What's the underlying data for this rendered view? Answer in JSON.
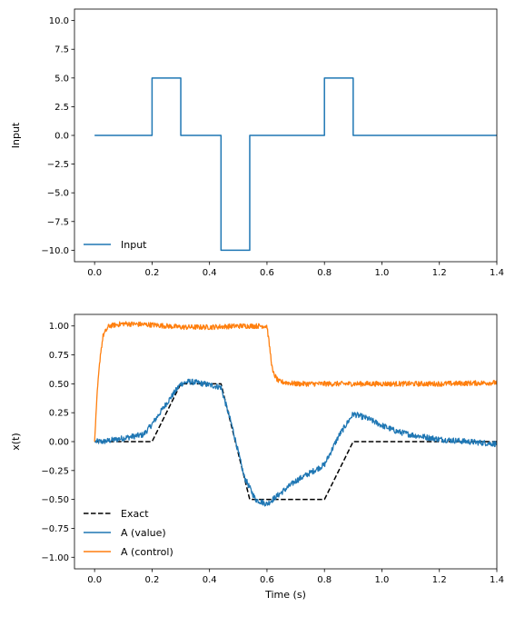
{
  "chart_data": [
    {
      "type": "line",
      "title": "",
      "xlabel": "",
      "ylabel": "Input",
      "xlim": [
        -0.07,
        1.4
      ],
      "ylim": [
        -11.0,
        11.0
      ],
      "xticks": [
        "0.0",
        "0.2",
        "0.4",
        "0.6",
        "0.8",
        "1.0",
        "1.2",
        "1.4"
      ],
      "yticks": [
        "10.0",
        "7.5",
        "5.0",
        "2.5",
        "0.0",
        "−2.5",
        "−5.0",
        "−7.5",
        "−10.0"
      ],
      "legend": "lower-left",
      "grid": false,
      "series": [
        {
          "name": "Input",
          "color": "#1f77b4",
          "style": "solid",
          "x": [
            0.0,
            0.2,
            0.2,
            0.3,
            0.3,
            0.44,
            0.44,
            0.54,
            0.54,
            0.8,
            0.8,
            0.9,
            0.9,
            1.4
          ],
          "y": [
            0,
            0,
            5,
            5,
            0,
            0,
            -10,
            -10,
            0,
            0,
            5,
            5,
            0,
            0
          ]
        }
      ]
    },
    {
      "type": "line",
      "title": "",
      "xlabel": "Time (s)",
      "ylabel": "x(t)",
      "xlim": [
        -0.07,
        1.4
      ],
      "ylim": [
        -1.1,
        1.1
      ],
      "xticks": [
        "0.0",
        "0.2",
        "0.4",
        "0.6",
        "0.8",
        "1.0",
        "1.2",
        "1.4"
      ],
      "yticks": [
        "1.00",
        "0.75",
        "0.50",
        "0.25",
        "0.00",
        "−0.25",
        "−0.50",
        "−0.75",
        "−1.00"
      ],
      "legend": "lower-left",
      "grid": false,
      "series": [
        {
          "name": "Exact",
          "color": "#000000",
          "style": "dashed",
          "x": [
            0.0,
            0.2,
            0.3,
            0.44,
            0.54,
            0.8,
            0.9,
            1.4
          ],
          "y": [
            0.0,
            0.0,
            0.5,
            0.5,
            -0.5,
            -0.5,
            0.0,
            0.0
          ]
        },
        {
          "name": "A (value)",
          "color": "#1f77b4",
          "style": "solid-noisy",
          "x": [
            0.0,
            0.03,
            0.1,
            0.17,
            0.2,
            0.25,
            0.3,
            0.33,
            0.38,
            0.44,
            0.48,
            0.52,
            0.56,
            0.6,
            0.62,
            0.65,
            0.7,
            0.75,
            0.8,
            0.85,
            0.9,
            0.95,
            1.0,
            1.05,
            1.1,
            1.2,
            1.3,
            1.4
          ],
          "y": [
            0.0,
            0.0,
            0.03,
            0.06,
            0.15,
            0.33,
            0.5,
            0.52,
            0.5,
            0.47,
            0.12,
            -0.3,
            -0.5,
            -0.54,
            -0.5,
            -0.44,
            -0.34,
            -0.27,
            -0.2,
            0.05,
            0.24,
            0.2,
            0.14,
            0.09,
            0.06,
            0.02,
            0.0,
            -0.02
          ]
        },
        {
          "name": "A (control)",
          "color": "#ff7f0e",
          "style": "solid-noisy",
          "x": [
            0.0,
            0.01,
            0.02,
            0.03,
            0.05,
            0.1,
            0.2,
            0.3,
            0.4,
            0.5,
            0.6,
            0.61,
            0.62,
            0.64,
            0.7,
            0.8,
            1.0,
            1.2,
            1.4
          ],
          "y": [
            0.0,
            0.45,
            0.75,
            0.92,
            1.0,
            1.02,
            1.01,
            0.99,
            0.99,
            1.0,
            1.0,
            0.8,
            0.6,
            0.52,
            0.5,
            0.5,
            0.5,
            0.5,
            0.51
          ]
        }
      ]
    }
  ]
}
